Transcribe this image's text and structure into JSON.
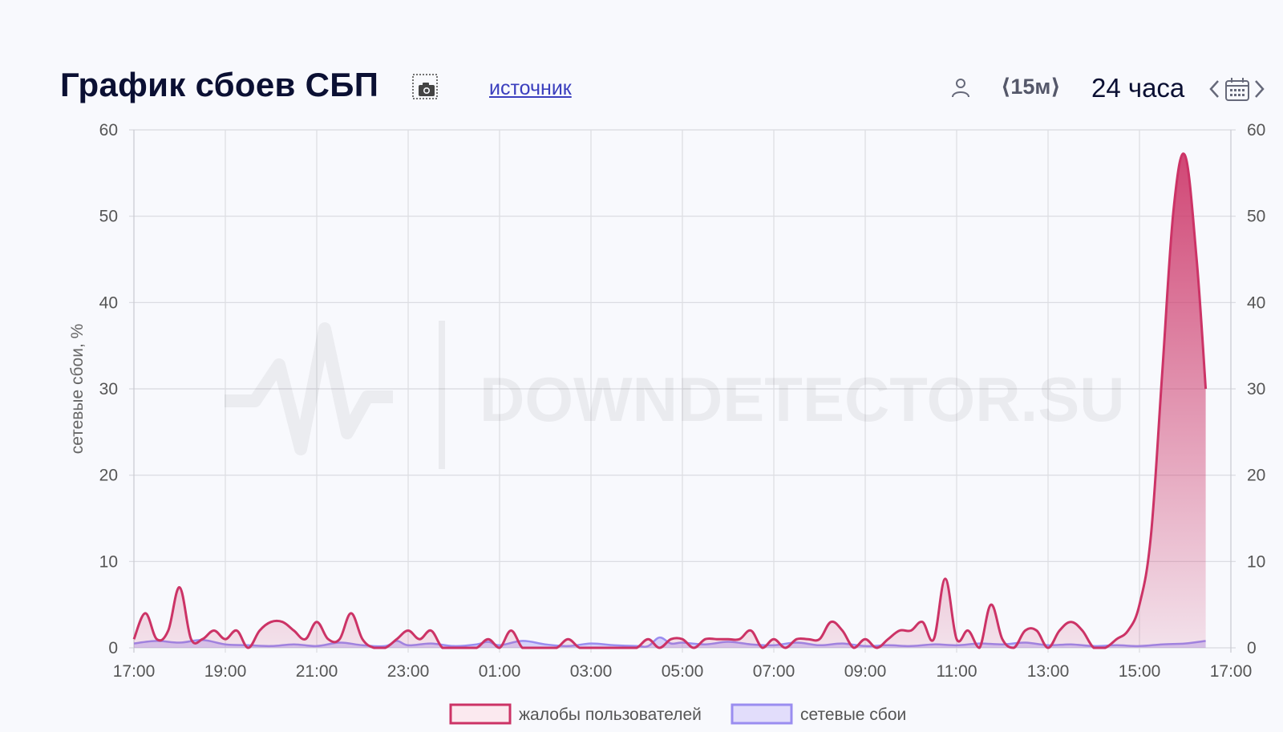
{
  "header": {
    "title": "График сбоев СБП",
    "source_link": "источник",
    "interval": "⟨15м⟩",
    "range": "24 часа"
  },
  "icons": {
    "screenshot": "camera-icon",
    "users": "user-icon",
    "previous": "chevron-left-icon",
    "calendar": "calendar-icon",
    "next": "chevron-right-icon"
  },
  "watermark": "DOWNDETECTOR.SU",
  "colors": {
    "complaints": "#cc3366",
    "network": "#9a8df0",
    "title": "#0b1033",
    "link": "#3b3fbe"
  },
  "chart_data": {
    "type": "area",
    "ylabel": "сетевые сбои, %",
    "ylim": [
      0,
      60
    ],
    "y_ticks": [
      "0",
      "10",
      "20",
      "30",
      "40",
      "50",
      "60"
    ],
    "x_ticks": [
      "17:00",
      "19:00",
      "21:00",
      "23:00",
      "01:00",
      "03:00",
      "05:00",
      "07:00",
      "09:00",
      "11:00",
      "13:00",
      "15:00",
      "17:00"
    ],
    "x_range_hours": [
      0,
      24
    ],
    "grid": true,
    "legend_position": "bottom",
    "series": [
      {
        "name": "жалобы пользователей",
        "color": "#cc3366",
        "points": [
          [
            0,
            1
          ],
          [
            0.25,
            4
          ],
          [
            0.5,
            1
          ],
          [
            0.75,
            2
          ],
          [
            1,
            7
          ],
          [
            1.25,
            1
          ],
          [
            1.5,
            1
          ],
          [
            1.75,
            2
          ],
          [
            2,
            1
          ],
          [
            2.25,
            2
          ],
          [
            2.5,
            0
          ],
          [
            2.75,
            2
          ],
          [
            3,
            3
          ],
          [
            3.25,
            3
          ],
          [
            3.5,
            2
          ],
          [
            3.75,
            1
          ],
          [
            4,
            3
          ],
          [
            4.25,
            1
          ],
          [
            4.5,
            1
          ],
          [
            4.75,
            4
          ],
          [
            5,
            1
          ],
          [
            5.25,
            0
          ],
          [
            5.5,
            0
          ],
          [
            5.75,
            1
          ],
          [
            6,
            2
          ],
          [
            6.25,
            1
          ],
          [
            6.5,
            2
          ],
          [
            6.75,
            0
          ],
          [
            7,
            0
          ],
          [
            7.25,
            0
          ],
          [
            7.5,
            0
          ],
          [
            7.75,
            1
          ],
          [
            8,
            0
          ],
          [
            8.25,
            2
          ],
          [
            8.5,
            0
          ],
          [
            8.75,
            0
          ],
          [
            9,
            0
          ],
          [
            9.25,
            0
          ],
          [
            9.5,
            1
          ],
          [
            9.75,
            0
          ],
          [
            10,
            0
          ],
          [
            10.25,
            0
          ],
          [
            10.5,
            0
          ],
          [
            10.75,
            0
          ],
          [
            11,
            0
          ],
          [
            11.25,
            1
          ],
          [
            11.5,
            0
          ],
          [
            11.75,
            1
          ],
          [
            12,
            1
          ],
          [
            12.25,
            0
          ],
          [
            12.5,
            1
          ],
          [
            12.75,
            1
          ],
          [
            13,
            1
          ],
          [
            13.25,
            1
          ],
          [
            13.5,
            2
          ],
          [
            13.75,
            0
          ],
          [
            14,
            1
          ],
          [
            14.25,
            0
          ],
          [
            14.5,
            1
          ],
          [
            14.75,
            1
          ],
          [
            15,
            1
          ],
          [
            15.25,
            3
          ],
          [
            15.5,
            2
          ],
          [
            15.75,
            0
          ],
          [
            16,
            1
          ],
          [
            16.25,
            0
          ],
          [
            16.5,
            1
          ],
          [
            16.75,
            2
          ],
          [
            17,
            2
          ],
          [
            17.25,
            3
          ],
          [
            17.5,
            1
          ],
          [
            17.75,
            8
          ],
          [
            18,
            1
          ],
          [
            18.25,
            2
          ],
          [
            18.5,
            0
          ],
          [
            18.75,
            5
          ],
          [
            19,
            1
          ],
          [
            19.25,
            0
          ],
          [
            19.5,
            2
          ],
          [
            19.75,
            2
          ],
          [
            20,
            0
          ],
          [
            20.25,
            2
          ],
          [
            20.5,
            3
          ],
          [
            20.75,
            2
          ],
          [
            21,
            0
          ],
          [
            21.25,
            0
          ],
          [
            21.5,
            1
          ],
          [
            21.75,
            2
          ],
          [
            22,
            5
          ],
          [
            22.25,
            13
          ],
          [
            22.5,
            32
          ],
          [
            22.75,
            51
          ],
          [
            23,
            57
          ],
          [
            23.25,
            45
          ],
          [
            23.45,
            30
          ]
        ]
      },
      {
        "name": "сетевые сбои",
        "color": "#9a8df0",
        "points": [
          [
            0,
            0.5
          ],
          [
            0.5,
            0.8
          ],
          [
            1,
            0.6
          ],
          [
            1.5,
            0.9
          ],
          [
            2,
            0.4
          ],
          [
            2.5,
            0.3
          ],
          [
            3,
            0.2
          ],
          [
            3.5,
            0.4
          ],
          [
            4,
            0.2
          ],
          [
            4.5,
            0.6
          ],
          [
            5,
            0.3
          ],
          [
            5.5,
            0.2
          ],
          [
            5.75,
            0.8
          ],
          [
            6,
            0.3
          ],
          [
            6.5,
            0.5
          ],
          [
            7,
            0.2
          ],
          [
            7.5,
            0.4
          ],
          [
            7.75,
            0.7
          ],
          [
            8,
            0.3
          ],
          [
            8.5,
            0.8
          ],
          [
            9,
            0.4
          ],
          [
            9.5,
            0.2
          ],
          [
            10,
            0.5
          ],
          [
            10.5,
            0.3
          ],
          [
            11,
            0.2
          ],
          [
            11.25,
            0.2
          ],
          [
            11.5,
            1.2
          ],
          [
            11.75,
            0.5
          ],
          [
            12,
            0.6
          ],
          [
            12.5,
            0.4
          ],
          [
            13,
            0.7
          ],
          [
            13.5,
            0.4
          ],
          [
            14,
            0.3
          ],
          [
            14.5,
            0.6
          ],
          [
            15,
            0.3
          ],
          [
            15.5,
            0.5
          ],
          [
            16,
            0.2
          ],
          [
            16.5,
            0.3
          ],
          [
            17,
            0.2
          ],
          [
            17.5,
            0.4
          ],
          [
            18,
            0.3
          ],
          [
            18.5,
            0.5
          ],
          [
            19,
            0.4
          ],
          [
            19.5,
            0.6
          ],
          [
            20,
            0.3
          ],
          [
            20.5,
            0.4
          ],
          [
            21,
            0.2
          ],
          [
            21.5,
            0.3
          ],
          [
            22,
            0.2
          ],
          [
            22.5,
            0.4
          ],
          [
            23,
            0.5
          ],
          [
            23.45,
            0.8
          ]
        ]
      }
    ]
  }
}
